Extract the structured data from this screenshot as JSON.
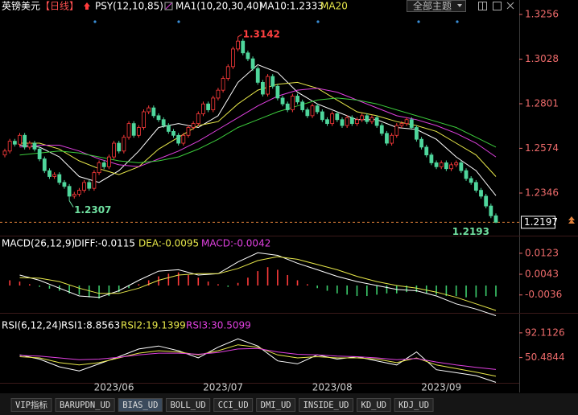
{
  "chart_data": {
    "type": "candlestick",
    "title": "英镑美元",
    "period": "【日线】",
    "header": [
      {
        "text": "PSY(12,10,85)",
        "color": "#ffffff"
      },
      {
        "text": "MA1(10,20,30,40)",
        "color": "#ffffff"
      },
      {
        "text": "MA10:1.2333",
        "color": "#ffffff"
      },
      {
        "text": "MA20",
        "color": "#e8e84a"
      }
    ],
    "theme_button": "全部主题",
    "categories": [
      null,
      null,
      null,
      null,
      null,
      null,
      null,
      null,
      null,
      null,
      null,
      null,
      null,
      null,
      null,
      null,
      null,
      null,
      null,
      null,
      null,
      null,
      "2023/06",
      null,
      null,
      null,
      null,
      null,
      null,
      null,
      null,
      null,
      null,
      null,
      null,
      null,
      null,
      null,
      null,
      null,
      null,
      null,
      null,
      null,
      "2023/07",
      null,
      null,
      null,
      null,
      null,
      null,
      null,
      null,
      null,
      null,
      null,
      null,
      null,
      null,
      null,
      null,
      null,
      null,
      null,
      null,
      null,
      "2023/08",
      null,
      null,
      null,
      null,
      null,
      null,
      null,
      null,
      null,
      null,
      null,
      null,
      null,
      null,
      null,
      null,
      null,
      null,
      null,
      null,
      null,
      "2023/09",
      null,
      null,
      null,
      null,
      null,
      null,
      null,
      null,
      null,
      null,
      null
    ],
    "candles": [
      [
        1.254,
        1.2572,
        1.2528,
        1.256
      ],
      [
        1.256,
        1.2622,
        1.2548,
        1.261
      ],
      [
        1.261,
        1.2622,
        1.2583,
        1.2595
      ],
      [
        1.2595,
        1.2652,
        1.2583,
        1.264
      ],
      [
        1.264,
        1.2652,
        1.2568,
        1.258
      ],
      [
        1.258,
        1.2612,
        1.2568,
        1.26
      ],
      [
        1.26,
        1.2612,
        1.2558,
        1.257
      ],
      [
        1.257,
        1.2582,
        1.2508,
        1.252
      ],
      [
        1.252,
        1.2532,
        1.2448,
        1.246
      ],
      [
        1.246,
        1.2472,
        1.2418,
        1.243
      ],
      [
        1.243,
        1.2452,
        1.2418,
        1.244
      ],
      [
        1.244,
        1.2452,
        1.2388,
        1.24
      ],
      [
        1.24,
        1.2412,
        1.2368,
        1.238
      ],
      [
        1.238,
        1.2392,
        1.2307,
        1.233
      ],
      [
        1.233,
        1.2352,
        1.2318,
        1.234
      ],
      [
        1.234,
        1.2372,
        1.2328,
        1.236
      ],
      [
        1.236,
        1.2412,
        1.2348,
        1.24
      ],
      [
        1.24,
        1.2412,
        1.2358,
        1.237
      ],
      [
        1.237,
        1.2462,
        1.2358,
        1.245
      ],
      [
        1.245,
        1.2512,
        1.2438,
        1.25
      ],
      [
        1.25,
        1.2512,
        1.2468,
        1.248
      ],
      [
        1.248,
        1.2542,
        1.2468,
        1.253
      ],
      [
        1.253,
        1.2612,
        1.2518,
        1.26
      ],
      [
        1.26,
        1.2612,
        1.2548,
        1.256
      ],
      [
        1.256,
        1.2642,
        1.2548,
        1.263
      ],
      [
        1.263,
        1.2712,
        1.2618,
        1.27
      ],
      [
        1.27,
        1.2712,
        1.2628,
        1.264
      ],
      [
        1.264,
        1.2692,
        1.2628,
        1.268
      ],
      [
        1.268,
        1.2772,
        1.2668,
        1.276
      ],
      [
        1.276,
        1.2792,
        1.2748,
        1.278
      ],
      [
        1.278,
        1.2792,
        1.2728,
        1.274
      ],
      [
        1.274,
        1.2752,
        1.2708,
        1.272
      ],
      [
        1.272,
        1.2732,
        1.2678,
        1.269
      ],
      [
        1.269,
        1.2702,
        1.2648,
        1.266
      ],
      [
        1.266,
        1.2672,
        1.2628,
        1.264
      ],
      [
        1.264,
        1.2652,
        1.2588,
        1.26
      ],
      [
        1.26,
        1.2652,
        1.2588,
        1.264
      ],
      [
        1.264,
        1.2692,
        1.2628,
        1.268
      ],
      [
        1.268,
        1.2712,
        1.2668,
        1.27
      ],
      [
        1.27,
        1.2762,
        1.2688,
        1.275
      ],
      [
        1.275,
        1.2812,
        1.2738,
        1.28
      ],
      [
        1.28,
        1.2812,
        1.2758,
        1.277
      ],
      [
        1.277,
        1.2842,
        1.2758,
        1.283
      ],
      [
        1.283,
        1.2882,
        1.2818,
        1.287
      ],
      [
        1.287,
        1.2942,
        1.2858,
        1.293
      ],
      [
        1.293,
        1.3002,
        1.2918,
        1.299
      ],
      [
        1.299,
        1.3092,
        1.2978,
        1.308
      ],
      [
        1.308,
        1.3142,
        1.3068,
        1.312
      ],
      [
        1.312,
        1.3132,
        1.3048,
        1.306
      ],
      [
        1.306,
        1.3072,
        1.3018,
        1.303
      ],
      [
        1.303,
        1.3042,
        1.2968,
        1.298
      ],
      [
        1.298,
        1.2992,
        1.2898,
        1.291
      ],
      [
        1.291,
        1.2922,
        1.2838,
        1.285
      ],
      [
        1.285,
        1.2952,
        1.2838,
        1.294
      ],
      [
        1.294,
        1.2952,
        1.2878,
        1.289
      ],
      [
        1.289,
        1.2902,
        1.2818,
        1.283
      ],
      [
        1.283,
        1.2842,
        1.2788,
        1.28
      ],
      [
        1.28,
        1.2812,
        1.2758,
        1.277
      ],
      [
        1.277,
        1.2852,
        1.2758,
        1.284
      ],
      [
        1.284,
        1.2852,
        1.2798,
        1.281
      ],
      [
        1.281,
        1.2822,
        1.2758,
        1.277
      ],
      [
        1.277,
        1.2782,
        1.2728,
        1.274
      ],
      [
        1.274,
        1.2802,
        1.2728,
        1.279
      ],
      [
        1.279,
        1.2802,
        1.2748,
        1.276
      ],
      [
        1.276,
        1.2772,
        1.2708,
        1.272
      ],
      [
        1.272,
        1.2732,
        1.2688,
        1.27
      ],
      [
        1.27,
        1.2762,
        1.2688,
        1.275
      ],
      [
        1.275,
        1.2762,
        1.2708,
        1.272
      ],
      [
        1.272,
        1.2732,
        1.2678,
        1.269
      ],
      [
        1.269,
        1.2742,
        1.2678,
        1.273
      ],
      [
        1.273,
        1.2742,
        1.2688,
        1.27
      ],
      [
        1.27,
        1.2732,
        1.2688,
        1.272
      ],
      [
        1.272,
        1.2752,
        1.2708,
        1.274
      ],
      [
        1.274,
        1.2752,
        1.2698,
        1.271
      ],
      [
        1.271,
        1.2742,
        1.2698,
        1.273
      ],
      [
        1.273,
        1.2742,
        1.2678,
        1.269
      ],
      [
        1.269,
        1.2702,
        1.2638,
        1.265
      ],
      [
        1.265,
        1.2662,
        1.2588,
        1.26
      ],
      [
        1.26,
        1.2652,
        1.2588,
        1.264
      ],
      [
        1.264,
        1.2702,
        1.2628,
        1.269
      ],
      [
        1.269,
        1.2712,
        1.2678,
        1.27
      ],
      [
        1.27,
        1.2732,
        1.2688,
        1.272
      ],
      [
        1.272,
        1.2732,
        1.2668,
        1.268
      ],
      [
        1.268,
        1.2692,
        1.2608,
        1.262
      ],
      [
        1.262,
        1.2632,
        1.2568,
        1.258
      ],
      [
        1.258,
        1.2592,
        1.2528,
        1.254
      ],
      [
        1.254,
        1.2552,
        1.2488,
        1.25
      ],
      [
        1.25,
        1.2512,
        1.2468,
        1.248
      ],
      [
        1.248,
        1.2512,
        1.2468,
        1.25
      ],
      [
        1.25,
        1.2512,
        1.2458,
        1.247
      ],
      [
        1.247,
        1.2502,
        1.2458,
        1.249
      ],
      [
        1.249,
        1.2512,
        1.2478,
        1.25
      ],
      [
        1.25,
        1.2512,
        1.2448,
        1.246
      ],
      [
        1.246,
        1.2472,
        1.2408,
        1.242
      ],
      [
        1.242,
        1.2432,
        1.2388,
        1.24
      ],
      [
        1.24,
        1.2412,
        1.2348,
        1.236
      ],
      [
        1.236,
        1.2372,
        1.2318,
        1.233
      ],
      [
        1.233,
        1.2342,
        1.2268,
        1.228
      ],
      [
        1.228,
        1.2292,
        1.2218,
        1.223
      ],
      [
        1.223,
        1.2242,
        1.2193,
        1.2197
      ]
    ],
    "up_color": "#ff3b3b",
    "down_color": "#4fd69c",
    "ylim": [
      1.2133,
      1.3264
    ],
    "yticks": [
      1.3256,
      1.3028,
      1.2801,
      1.2574,
      1.2346
    ],
    "last_price": 1.2197,
    "last_price_color": "#e0803a",
    "overlays": [
      {
        "color": "#ffffff",
        "values": [
          1.259,
          1.258,
          1.253,
          1.243,
          1.24,
          1.246,
          1.256,
          1.268,
          1.27,
          1.268,
          1.274,
          1.291,
          1.3,
          1.296,
          1.286,
          1.28,
          1.276,
          1.272,
          1.272,
          1.268,
          1.267,
          1.262,
          1.253,
          1.246,
          1.2333
        ]
      },
      {
        "color": "#e8e84a",
        "values": [
          1.26,
          1.26,
          1.257,
          1.251,
          1.247,
          1.244,
          1.248,
          1.257,
          1.263,
          1.269,
          1.271,
          1.28,
          1.287,
          1.29,
          1.291,
          1.288,
          1.282,
          1.276,
          1.274,
          1.271,
          1.269,
          1.266,
          1.26,
          1.254,
          1.243
        ]
      },
      {
        "color": "#e040e0",
        "values": [
          1.258,
          1.259,
          1.259,
          1.256,
          1.252,
          1.249,
          1.248,
          1.252,
          1.256,
          1.261,
          1.267,
          1.273,
          1.279,
          1.284,
          1.287,
          1.288,
          1.286,
          1.282,
          1.278,
          1.274,
          1.272,
          1.269,
          1.265,
          1.26,
          1.253
        ]
      },
      {
        "color": "#3ccc3c",
        "values": [
          1.254,
          1.255,
          1.256,
          1.255,
          1.253,
          1.251,
          1.25,
          1.251,
          1.253,
          1.257,
          1.262,
          1.268,
          1.272,
          1.276,
          1.279,
          1.282,
          1.283,
          1.282,
          1.28,
          1.277,
          1.274,
          1.271,
          1.268,
          1.263,
          1.258
        ]
      }
    ],
    "macd": {
      "header": [
        {
          "text": "MACD(26,12,9)",
          "color": "#ffffff"
        },
        {
          "text": "DIFF:-0.0115",
          "color": "#ffffff"
        },
        {
          "text": "DEA:-0.0095",
          "color": "#e8e84a"
        },
        {
          "text": "MACD:-0.0042",
          "color": "#e040e0"
        }
      ],
      "ylim": [
        -0.0092,
        0.0181
      ],
      "yticks": [
        0.0123,
        0.0043,
        -0.0036
      ],
      "series": [
        {
          "color": "#ffffff",
          "values": [
            0.004,
            0.002,
            -0.001,
            -0.004,
            -0.0045,
            -0.002,
            0.002,
            0.0055,
            0.006,
            0.004,
            0.0045,
            0.009,
            0.0125,
            0.0115,
            0.0085,
            0.006,
            0.0035,
            0.0015,
            0.0,
            -0.0015,
            -0.002,
            -0.004,
            -0.007,
            -0.009,
            -0.0115
          ]
        },
        {
          "color": "#e8e84a",
          "values": [
            0.003,
            0.0028,
            0.0015,
            -0.001,
            -0.003,
            -0.003,
            -0.001,
            0.002,
            0.004,
            0.0045,
            0.0045,
            0.0065,
            0.0095,
            0.011,
            0.01,
            0.008,
            0.006,
            0.0035,
            0.0015,
            0.0,
            -0.001,
            -0.0025,
            -0.0045,
            -0.007,
            -0.0095
          ]
        }
      ],
      "histogram": {
        "up_color": "#ff3b3b",
        "down_color": "#3ccc6c",
        "values": [
          0.002,
          0.0015,
          0.0005,
          -0.0005,
          -0.0012,
          -0.002,
          -0.003,
          -0.0035,
          -0.0045,
          -0.005,
          -0.004,
          -0.0025,
          -0.001,
          0.0005,
          0.002,
          0.0035,
          0.0045,
          0.005,
          0.004,
          0.003,
          0.0015,
          0.0005,
          -0.0005,
          0.001,
          0.003,
          0.0055,
          0.007,
          0.006,
          0.004,
          0.002,
          0.0005,
          -0.001,
          -0.002,
          -0.003,
          -0.0035,
          -0.004,
          -0.004,
          -0.0035,
          -0.003,
          -0.003,
          -0.0025,
          -0.0025,
          -0.003,
          -0.0035,
          -0.004,
          -0.004,
          -0.0045,
          -0.0045,
          -0.004,
          -0.0042
        ]
      }
    },
    "rsi": {
      "header": [
        {
          "text": "RSI(6,12,24)",
          "color": "#ffffff"
        },
        {
          "text": "RSI1:8.8563",
          "color": "#ffffff"
        },
        {
          "text": "RSI2:19.1399",
          "color": "#e8e84a"
        },
        {
          "text": "RSI3:30.5099",
          "color": "#e040e0"
        }
      ],
      "ylim": [
        8,
        116.3
      ],
      "yticks": [
        92.1126,
        50.4844
      ],
      "series": [
        {
          "color": "#ffffff",
          "values": [
            55,
            48,
            35,
            28,
            40,
            52,
            65,
            70,
            62,
            50,
            68,
            82,
            70,
            45,
            40,
            55,
            48,
            52,
            45,
            38,
            60,
            30,
            25,
            20,
            8.8563
          ]
        },
        {
          "color": "#e8e84a",
          "values": [
            52,
            50,
            42,
            38,
            42,
            50,
            58,
            62,
            60,
            55,
            62,
            72,
            68,
            55,
            50,
            52,
            50,
            50,
            48,
            42,
            50,
            38,
            32,
            26,
            19.1399
          ]
        },
        {
          "color": "#e040e0",
          "values": [
            54,
            53,
            50,
            47,
            48,
            51,
            55,
            58,
            58,
            56,
            59,
            65,
            66,
            60,
            56,
            55,
            53,
            52,
            50,
            47,
            49,
            43,
            38,
            34,
            30.5099
          ]
        }
      ]
    },
    "tabs": [
      "VIP指标",
      "BARUPDN_UD",
      "BIAS_UD",
      "BOLL_UD",
      "CCI_UD",
      "DMI_UD",
      "INSIDE_UD",
      "KD_UD",
      "KDJ_UD"
    ],
    "selected_tab": 2
  }
}
